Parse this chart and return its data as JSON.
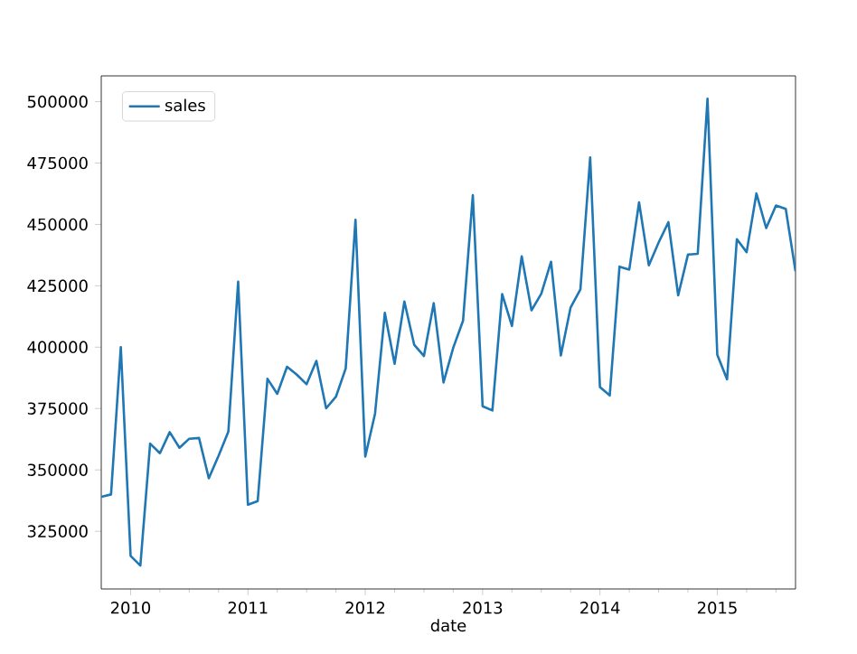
{
  "chart_data": {
    "type": "line",
    "xlabel": "date",
    "legend": "top left",
    "grid": false,
    "marker": "none",
    "line_style": "solid",
    "x": [
      "2009-10",
      "2009-11",
      "2009-12",
      "2010-01",
      "2010-02",
      "2010-03",
      "2010-04",
      "2010-05",
      "2010-06",
      "2010-07",
      "2010-08",
      "2010-09",
      "2010-10",
      "2010-11",
      "2010-12",
      "2011-01",
      "2011-02",
      "2011-03",
      "2011-04",
      "2011-05",
      "2011-06",
      "2011-07",
      "2011-08",
      "2011-09",
      "2011-10",
      "2011-11",
      "2011-12",
      "2012-01",
      "2012-02",
      "2012-03",
      "2012-04",
      "2012-05",
      "2012-06",
      "2012-07",
      "2012-08",
      "2012-09",
      "2012-10",
      "2012-11",
      "2012-12",
      "2013-01",
      "2013-02",
      "2013-03",
      "2013-04",
      "2013-05",
      "2013-06",
      "2013-07",
      "2013-08",
      "2013-09",
      "2013-10",
      "2013-11",
      "2013-12",
      "2014-01",
      "2014-02",
      "2014-03",
      "2014-04",
      "2014-05",
      "2014-06",
      "2014-07",
      "2014-08",
      "2014-09",
      "2014-10",
      "2014-11",
      "2014-12",
      "2015-01",
      "2015-02",
      "2015-03",
      "2015-04",
      "2015-05",
      "2015-06",
      "2015-07",
      "2015-08",
      "2015-09"
    ],
    "series": [
      {
        "name": "sales",
        "color": "#1f77b4",
        "values": [
          339000,
          340000,
          400000,
          315000,
          311000,
          360700,
          356800,
          365400,
          359000,
          362700,
          363000,
          346600,
          355800,
          365600,
          426700,
          335800,
          337300,
          387100,
          381000,
          392000,
          388800,
          384900,
          394400,
          375100,
          379800,
          391300,
          451900,
          355400,
          372900,
          414000,
          393200,
          418600,
          401000,
          396400,
          417900,
          385600,
          399800,
          410800,
          461900,
          375900,
          374200,
          421600,
          408600,
          437000,
          415000,
          421800,
          434800,
          396600,
          416200,
          423500,
          477300,
          383700,
          380300,
          432800,
          431600,
          459000,
          433300,
          442600,
          450900,
          421100,
          437700,
          438000,
          501200,
          396900,
          386900,
          444000,
          438700,
          462600,
          448500,
          457700,
          456300,
          430900
        ]
      }
    ],
    "xlim": [
      "2009-10",
      "2015-09"
    ],
    "xticks": [
      {
        "value": "2010-01",
        "label": "2010"
      },
      {
        "value": "2010-04",
        "label": null
      },
      {
        "value": "2010-07",
        "label": null
      },
      {
        "value": "2010-10",
        "label": null
      },
      {
        "value": "2011-01",
        "label": "2011"
      },
      {
        "value": "2011-04",
        "label": null
      },
      {
        "value": "2011-07",
        "label": null
      },
      {
        "value": "2011-10",
        "label": null
      },
      {
        "value": "2012-01",
        "label": "2012"
      },
      {
        "value": "2012-04",
        "label": null
      },
      {
        "value": "2012-07",
        "label": null
      },
      {
        "value": "2012-10",
        "label": null
      },
      {
        "value": "2013-01",
        "label": "2013"
      },
      {
        "value": "2013-04",
        "label": null
      },
      {
        "value": "2013-07",
        "label": null
      },
      {
        "value": "2013-10",
        "label": null
      },
      {
        "value": "2014-01",
        "label": "2014"
      },
      {
        "value": "2014-04",
        "label": null
      },
      {
        "value": "2014-07",
        "label": null
      },
      {
        "value": "2014-10",
        "label": null
      },
      {
        "value": "2015-01",
        "label": "2015"
      },
      {
        "value": "2015-04",
        "label": null
      },
      {
        "value": "2015-07",
        "label": null
      }
    ],
    "ylim": [
      301500,
      510500
    ],
    "yticks": [
      325000,
      350000,
      375000,
      400000,
      425000,
      450000,
      475000,
      500000
    ]
  }
}
